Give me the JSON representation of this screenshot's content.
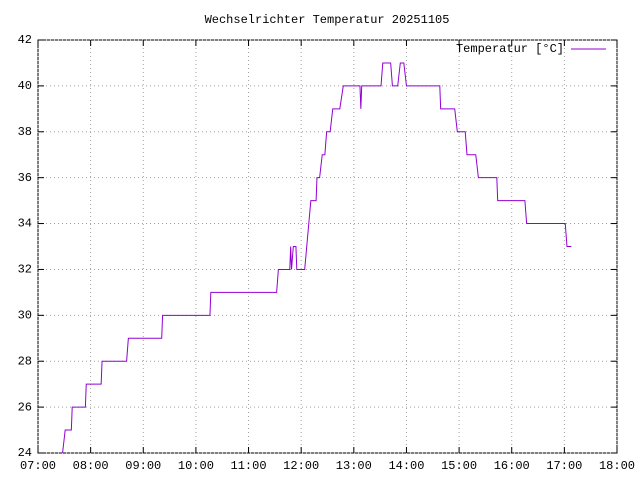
{
  "chart_data": {
    "type": "line",
    "title": "Wechselrichter Temperatur 20251105",
    "x": [
      448,
      451,
      458,
      459,
      474,
      475,
      492,
      493,
      521,
      523,
      561,
      562,
      616,
      617,
      692,
      694,
      707,
      708,
      709,
      711,
      714,
      715,
      724,
      731,
      737,
      738,
      741,
      744,
      747,
      749,
      753,
      756,
      764,
      768,
      787,
      788,
      789,
      811,
      813,
      822,
      824,
      830,
      833,
      837,
      840,
      878,
      879,
      895,
      898,
      907,
      909,
      919,
      922,
      943,
      944,
      975,
      977,
      1021,
      1023,
      1028
    ],
    "series": [
      {
        "name": "Temperatur [°C]",
        "color": "#9400d3",
        "values": [
          24,
          25,
          25,
          26,
          26,
          27,
          27,
          28,
          28,
          29,
          29,
          30,
          30,
          31,
          31,
          32,
          32,
          33,
          32,
          33,
          33,
          32,
          32,
          35,
          35,
          36,
          36,
          37,
          37,
          38,
          38,
          39,
          39,
          40,
          40,
          39,
          40,
          40,
          41,
          41,
          40,
          40,
          41,
          41,
          40,
          40,
          39,
          39,
          38,
          38,
          37,
          37,
          36,
          36,
          35,
          35,
          34,
          34,
          33,
          33
        ]
      }
    ],
    "xlim": [
      420,
      1080
    ],
    "xticks": [
      {
        "value": 420,
        "label": "07:00"
      },
      {
        "value": 480,
        "label": "08:00"
      },
      {
        "value": 540,
        "label": "09:00"
      },
      {
        "value": 600,
        "label": "10:00"
      },
      {
        "value": 660,
        "label": "11:00"
      },
      {
        "value": 720,
        "label": "12:00"
      },
      {
        "value": 780,
        "label": "13:00"
      },
      {
        "value": 840,
        "label": "14:00"
      },
      {
        "value": 900,
        "label": "15:00"
      },
      {
        "value": 960,
        "label": "16:00"
      },
      {
        "value": 1020,
        "label": "17:00"
      },
      {
        "value": 1080,
        "label": "18:00"
      }
    ],
    "ylim": [
      24,
      42
    ],
    "yticks": [
      24,
      26,
      28,
      30,
      32,
      34,
      36,
      38,
      40,
      42
    ],
    "grid": true,
    "legend": "top-right"
  }
}
